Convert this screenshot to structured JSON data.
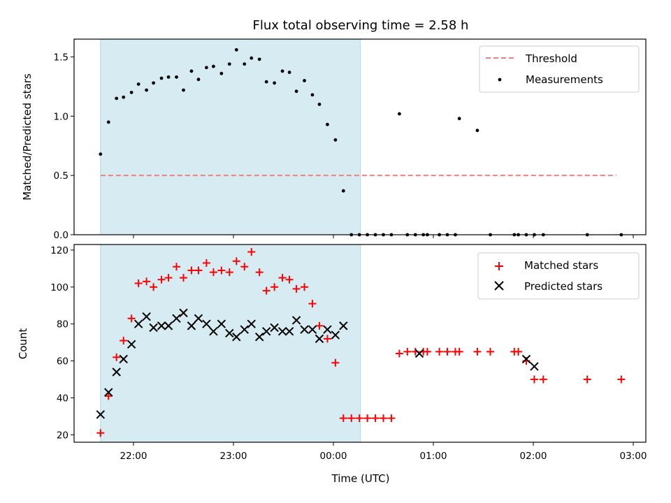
{
  "title": "Flux total observing time = 2.58 h",
  "chart_data": [
    {
      "type": "scatter",
      "panel": "top",
      "ylabel": "Matched/Predicted stars",
      "xlabel": "",
      "x_unit": "hours since 00:00 UTC (negative = previous evening)",
      "xlim": [
        -2.6,
        3.12
      ],
      "ylim": [
        0,
        1.65
      ],
      "yticks": [
        "0.0",
        "0.5",
        "1.0",
        "1.5"
      ],
      "ytick_values": [
        0,
        0.5,
        1.0,
        1.5
      ],
      "grid": false,
      "shaded_region": {
        "x_start": -2.33,
        "x_end": 0.27,
        "color": "#add8e6"
      },
      "threshold": {
        "name": "Threshold",
        "y": 0.5,
        "x_start": -2.33,
        "x_end": 2.83,
        "color": "#f08080",
        "style": "dashed"
      },
      "legend": {
        "position": "top-right",
        "entries": [
          "Threshold",
          "Measurements"
        ]
      },
      "series": [
        {
          "name": "Measurements",
          "marker": "dot",
          "color": "#000000",
          "x": [
            -2.33,
            -2.25,
            -2.17,
            -2.1,
            -2.02,
            -1.95,
            -1.87,
            -1.8,
            -1.72,
            -1.65,
            -1.57,
            -1.5,
            -1.42,
            -1.35,
            -1.27,
            -1.2,
            -1.12,
            -1.04,
            -0.97,
            -0.89,
            -0.82,
            -0.74,
            -0.67,
            -0.59,
            -0.51,
            -0.44,
            -0.37,
            -0.29,
            -0.21,
            -0.14,
            -0.06,
            0.02,
            0.1,
            0.18,
            0.26,
            0.34,
            0.42,
            0.5,
            0.58,
            0.66,
            0.74,
            0.82,
            0.9,
            0.94,
            1.06,
            1.14,
            1.22,
            1.26,
            1.44,
            1.57,
            1.81,
            1.85,
            1.93,
            2.01,
            2.1,
            2.54,
            2.88
          ],
          "y": [
            0.68,
            0.95,
            1.15,
            1.16,
            1.2,
            1.27,
            1.22,
            1.28,
            1.32,
            1.33,
            1.33,
            1.22,
            1.38,
            1.31,
            1.41,
            1.42,
            1.36,
            1.44,
            1.56,
            1.44,
            1.49,
            1.48,
            1.29,
            1.28,
            1.38,
            1.37,
            1.21,
            1.3,
            1.18,
            1.1,
            0.93,
            0.8,
            0.37,
            0.0,
            0.0,
            0.0,
            0.0,
            0.0,
            0.0,
            1.02,
            0.0,
            0.0,
            0.0,
            0.0,
            0.0,
            0.0,
            0.0,
            0.98,
            0.88,
            0.0,
            0.0,
            0.0,
            0.0,
            0.0,
            0.0,
            0.0,
            0.0
          ]
        }
      ]
    },
    {
      "type": "scatter",
      "panel": "bottom",
      "ylabel": "Count",
      "xlabel": "Time (UTC)",
      "x_unit": "hours since 00:00 UTC (negative = previous evening)",
      "xlim": [
        -2.6,
        3.12
      ],
      "ylim": [
        16,
        123
      ],
      "yticks": [
        "20",
        "40",
        "60",
        "80",
        "100",
        "120"
      ],
      "ytick_values": [
        20,
        40,
        60,
        80,
        100,
        120
      ],
      "xticks": [
        "22:00",
        "23:00",
        "00:00",
        "01:00",
        "02:00",
        "03:00"
      ],
      "xtick_values": [
        -2,
        -1,
        0,
        1,
        2,
        3
      ],
      "grid": false,
      "shaded_region": {
        "x_start": -2.33,
        "x_end": 0.27,
        "color": "#add8e6"
      },
      "legend": {
        "position": "top-right",
        "entries": [
          "Matched stars",
          "Predicted stars"
        ]
      },
      "series": [
        {
          "name": "Matched stars",
          "marker": "plus",
          "color": "#ff0000",
          "x": [
            -2.33,
            -2.25,
            -2.17,
            -2.1,
            -2.02,
            -1.95,
            -1.87,
            -1.8,
            -1.72,
            -1.65,
            -1.57,
            -1.5,
            -1.42,
            -1.35,
            -1.27,
            -1.2,
            -1.12,
            -1.04,
            -0.97,
            -0.89,
            -0.82,
            -0.74,
            -0.67,
            -0.59,
            -0.51,
            -0.44,
            -0.37,
            -0.29,
            -0.21,
            -0.14,
            -0.06,
            0.02,
            0.1,
            0.18,
            0.26,
            0.34,
            0.42,
            0.5,
            0.58,
            0.66,
            0.74,
            0.82,
            0.9,
            0.94,
            1.06,
            1.14,
            1.22,
            1.26,
            1.44,
            1.57,
            1.81,
            1.85,
            1.93,
            2.01,
            2.1,
            2.54,
            2.88
          ],
          "y": [
            21,
            41,
            62,
            71,
            83,
            102,
            103,
            100,
            104,
            105,
            111,
            105,
            109,
            109,
            113,
            108,
            109,
            108,
            114,
            111,
            119,
            108,
            98,
            100,
            105,
            104,
            99,
            100,
            91,
            79,
            72,
            59,
            29,
            29,
            29,
            29,
            29,
            29,
            29,
            64,
            65,
            65,
            65,
            65,
            65,
            65,
            65,
            65,
            65,
            65,
            65,
            65,
            60,
            50,
            50,
            50,
            50
          ]
        },
        {
          "name": "Predicted stars",
          "marker": "x",
          "color": "#000000",
          "x": [
            -2.33,
            -2.25,
            -2.17,
            -2.1,
            -2.02,
            -1.95,
            -1.87,
            -1.8,
            -1.72,
            -1.65,
            -1.57,
            -1.5,
            -1.42,
            -1.35,
            -1.27,
            -1.2,
            -1.12,
            -1.04,
            -0.97,
            -0.89,
            -0.82,
            -0.74,
            -0.67,
            -0.59,
            -0.51,
            -0.44,
            -0.37,
            -0.29,
            -0.21,
            -0.14,
            -0.06,
            0.02,
            0.1,
            0.86,
            1.93,
            2.01
          ],
          "y": [
            31,
            43,
            54,
            61,
            69,
            80,
            84,
            78,
            79,
            79,
            83,
            86,
            79,
            83,
            80,
            76,
            80,
            75,
            73,
            77,
            80,
            73,
            76,
            78,
            76,
            76,
            82,
            77,
            77,
            72,
            77,
            74,
            79,
            64,
            61,
            57
          ]
        }
      ]
    }
  ]
}
